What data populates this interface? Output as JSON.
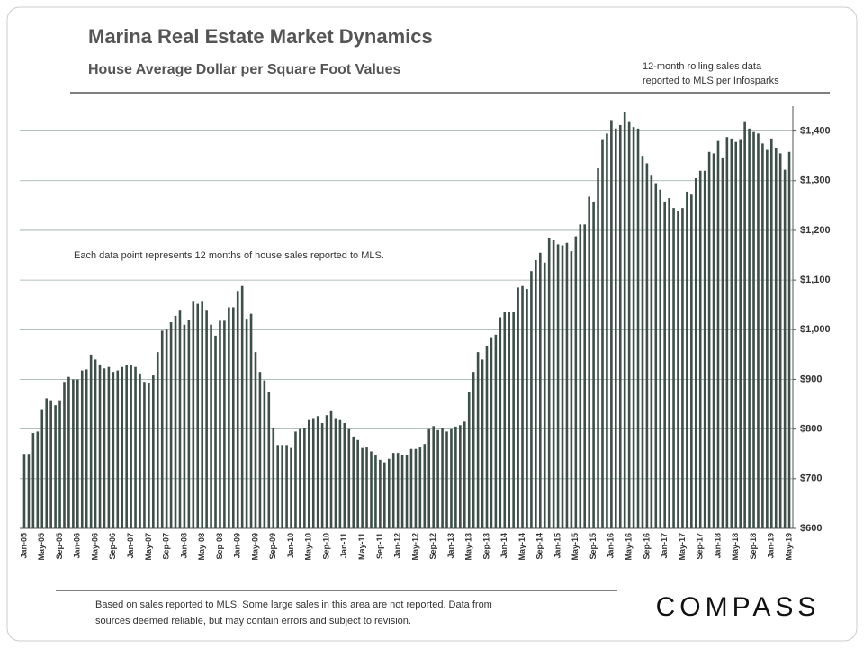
{
  "chart_data": {
    "type": "bar",
    "title": "Marina Real Estate Market Dynamics",
    "subtitle": "House Average Dollar per Square Foot Values",
    "note": [
      "12-month rolling sales data",
      "reported to MLS per Infosparks"
    ],
    "annotation": "Each data point represents 12 months of  house sales reported to MLS.",
    "footer": [
      "Based on sales reported to MLS. Some large sales in this area are not reported. Data from",
      "sources deemed reliable, but may contain errors and subject to revision."
    ],
    "brand": "COMPASS",
    "color": "#3d4f48",
    "grid": true,
    "ylim": [
      600,
      1450
    ],
    "yticks": [
      {
        "value": 600,
        "label": "$600"
      },
      {
        "value": 700,
        "label": "$700"
      },
      {
        "value": 800,
        "label": "$800"
      },
      {
        "value": 900,
        "label": "$900"
      },
      {
        "value": 1000,
        "label": "$1,000"
      },
      {
        "value": 1100,
        "label": "$1,100"
      },
      {
        "value": 1200,
        "label": "$1,200"
      },
      {
        "value": 1300,
        "label": "$1,300"
      },
      {
        "value": 1400,
        "label": "$1,400"
      }
    ],
    "categories": [
      "Jan-05",
      null,
      null,
      null,
      "May-05",
      null,
      null,
      null,
      "Sep-05",
      null,
      null,
      null,
      "Jan-06",
      null,
      null,
      null,
      "May-06",
      null,
      null,
      null,
      "Sep-06",
      null,
      null,
      null,
      "Jan-07",
      null,
      null,
      null,
      "May-07",
      null,
      null,
      null,
      "Sep-07",
      null,
      null,
      null,
      "Jan-08",
      null,
      null,
      null,
      "May-08",
      null,
      null,
      null,
      "Sep-08",
      null,
      null,
      null,
      "Jan-09",
      null,
      null,
      null,
      "May-09",
      null,
      null,
      null,
      "Sep-09",
      null,
      null,
      null,
      "Jan-10",
      null,
      null,
      null,
      "May-10",
      null,
      null,
      null,
      "Sep-10",
      null,
      null,
      null,
      "Jan-11",
      null,
      null,
      null,
      "May-11",
      null,
      null,
      null,
      "Sep-11",
      null,
      null,
      null,
      "Jan-12",
      null,
      null,
      null,
      "May-12",
      null,
      null,
      null,
      "Sep-12",
      null,
      null,
      null,
      "Jan-13",
      null,
      null,
      null,
      "May-13",
      null,
      null,
      null,
      "Sep-13",
      null,
      null,
      null,
      "Jan-14",
      null,
      null,
      null,
      "May-14",
      null,
      null,
      null,
      "Sep-14",
      null,
      null,
      null,
      "Jan-15",
      null,
      null,
      null,
      "May-15",
      null,
      null,
      null,
      "Sep-15",
      null,
      null,
      null,
      "Jan-16",
      null,
      null,
      null,
      "May-16",
      null,
      null,
      null,
      "Sep-16",
      null,
      null,
      null,
      "Jan-17",
      null,
      null,
      null,
      "May-17",
      null,
      null,
      null,
      "Sep-17",
      null,
      null,
      null,
      "Jan-18",
      null,
      null,
      null,
      "May-18",
      null,
      null,
      null,
      "Sep-18",
      null,
      null,
      null,
      "Jan-19",
      null,
      null,
      null,
      "May-19"
    ],
    "values": [
      750,
      750,
      792,
      795,
      840,
      862,
      858,
      848,
      858,
      895,
      905,
      900,
      900,
      918,
      920,
      950,
      940,
      930,
      922,
      925,
      915,
      918,
      925,
      928,
      928,
      925,
      912,
      895,
      892,
      908,
      955,
      998,
      1000,
      1015,
      1028,
      1040,
      1010,
      1020,
      1058,
      1052,
      1058,
      1040,
      1010,
      988,
      1018,
      1018,
      1045,
      1045,
      1078,
      1088,
      1022,
      1032,
      955,
      915,
      898,
      875,
      802,
      768,
      768,
      768,
      762,
      795,
      800,
      803,
      818,
      822,
      826,
      812,
      828,
      836,
      822,
      818,
      812,
      800,
      785,
      778,
      762,
      763,
      755,
      748,
      738,
      733,
      740,
      752,
      752,
      748,
      748,
      760,
      760,
      763,
      770,
      800,
      806,
      798,
      802,
      795,
      800,
      805,
      808,
      815,
      875,
      915,
      955,
      940,
      968,
      985,
      990,
      1025,
      1035,
      1035,
      1035,
      1085,
      1088,
      1082,
      1118,
      1140,
      1155,
      1135,
      1185,
      1180,
      1172,
      1170,
      1175,
      1158,
      1188,
      1212,
      1212,
      1268,
      1258,
      1325,
      1382,
      1395,
      1422,
      1405,
      1412,
      1438,
      1418,
      1408,
      1405,
      1350,
      1335,
      1310,
      1295,
      1282,
      1258,
      1265,
      1245,
      1238,
      1245,
      1278,
      1272,
      1305,
      1320,
      1320,
      1358,
      1355,
      1380,
      1345,
      1388,
      1385,
      1378,
      1382,
      1418,
      1405,
      1398,
      1395,
      1375,
      1362,
      1385,
      1365,
      1355,
      1322,
      1358
    ]
  }
}
